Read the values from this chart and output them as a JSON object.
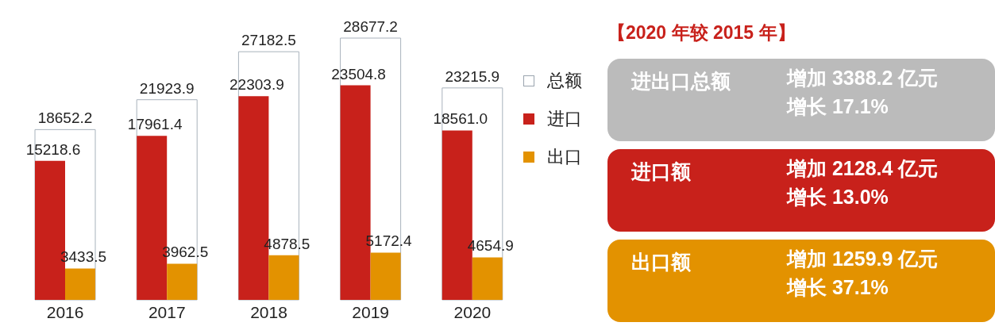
{
  "chart_data": [
    {
      "type": "bar",
      "categories": [
        "2016",
        "2017",
        "2018",
        "2019",
        "2020"
      ],
      "legend": "right",
      "series": [
        {
          "name": "总额",
          "color": "#ffffff",
          "values": [
            18652.2,
            21923.9,
            27182.5,
            28677.2,
            23215.9
          ],
          "value_labels": [
            "18652.2",
            "21923.9",
            "27182.5",
            "28677.2",
            "23215.9"
          ]
        },
        {
          "name": "进口",
          "color": "#c8211b",
          "values": [
            15218.6,
            17961.4,
            22303.9,
            23504.8,
            18561.0
          ],
          "value_labels": [
            "15218.6",
            "17961.4",
            "22303.9",
            "23504.8",
            "18561.0"
          ]
        },
        {
          "name": "出口",
          "color": "#e39200",
          "values": [
            3433.5,
            3962.5,
            4878.5,
            5172.4,
            4654.9
          ],
          "value_labels": [
            "3433.5",
            "3962.5",
            "4878.5",
            "5172.4",
            "4654.9"
          ]
        }
      ]
    },
    {
      "type": "other",
      "title": "【2020 年较 2015 年】",
      "categories": [
        "进出口总额",
        "进口额",
        "出口额"
      ],
      "colors": [
        "#bbbbbb",
        "#c8211b",
        "#e39200"
      ],
      "annotations": [
        "增加 3388.2 亿元",
        "增长 17.1%",
        "增加 2128.4 亿元",
        "增长 13.0%",
        "增加 1259.9 亿元",
        "增长 37.1%"
      ]
    }
  ]
}
